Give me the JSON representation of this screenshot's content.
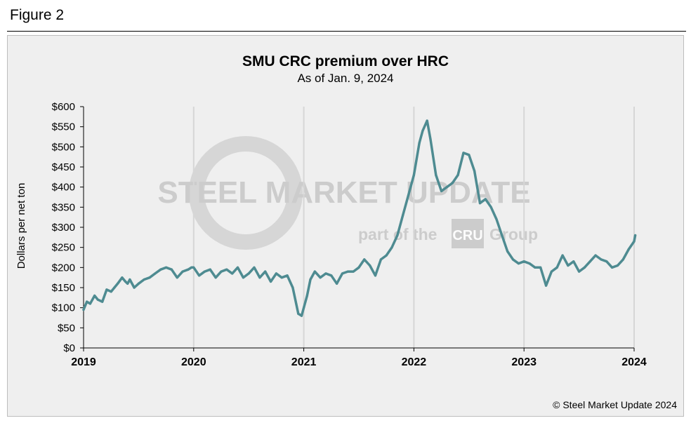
{
  "figure_label": "Figure 2",
  "copyright": "© Steel Market Update 2024",
  "watermark": {
    "brand": "STEEL MARKET UPDATE",
    "tagline_pre": "part of the",
    "tagline_logo": "CRU",
    "tagline_post": "Group"
  },
  "colors": {
    "line": "#4e8b91",
    "background": "#efefef",
    "grid": "#d6d6d6"
  },
  "chart_data": {
    "type": "line",
    "title": "SMU CRC premium over HRC",
    "subtitle": "As of Jan. 9, 2024",
    "xlabel": "",
    "ylabel": "Dollars per net ton",
    "xlim": [
      2019,
      2024
    ],
    "ylim": [
      0,
      600
    ],
    "x_ticks": [
      2019,
      2020,
      2021,
      2022,
      2023,
      2024
    ],
    "x_tick_labels": [
      "2019",
      "2020",
      "2021",
      "2022",
      "2023",
      "2024"
    ],
    "y_ticks": [
      0,
      50,
      100,
      150,
      200,
      250,
      300,
      350,
      400,
      450,
      500,
      550,
      600
    ],
    "y_tick_labels": [
      "$0",
      "$50",
      "$100",
      "$150",
      "$200",
      "$250",
      "$300",
      "$350",
      "$400",
      "$450",
      "$500",
      "$550",
      "$600"
    ],
    "grid": "vertical",
    "series": [
      {
        "name": "CRC premium over HRC",
        "x": [
          2019.0,
          2019.03,
          2019.06,
          2019.1,
          2019.13,
          2019.17,
          2019.21,
          2019.25,
          2019.28,
          2019.31,
          2019.35,
          2019.38,
          2019.4,
          2019.42,
          2019.46,
          2019.5,
          2019.55,
          2019.6,
          2019.65,
          2019.7,
          2019.75,
          2019.8,
          2019.85,
          2019.9,
          2019.95,
          2019.98,
          2020.0,
          2020.05,
          2020.1,
          2020.15,
          2020.2,
          2020.25,
          2020.3,
          2020.35,
          2020.4,
          2020.45,
          2020.5,
          2020.55,
          2020.6,
          2020.65,
          2020.7,
          2020.75,
          2020.8,
          2020.85,
          2020.9,
          2020.95,
          2020.98,
          2021.0,
          2021.03,
          2021.06,
          2021.1,
          2021.15,
          2021.2,
          2021.25,
          2021.3,
          2021.35,
          2021.4,
          2021.45,
          2021.5,
          2021.55,
          2021.6,
          2021.65,
          2021.7,
          2021.75,
          2021.8,
          2021.85,
          2021.9,
          2021.95,
          2022.0,
          2022.05,
          2022.08,
          2022.12,
          2022.15,
          2022.2,
          2022.25,
          2022.3,
          2022.35,
          2022.4,
          2022.45,
          2022.5,
          2022.55,
          2022.6,
          2022.65,
          2022.7,
          2022.75,
          2022.8,
          2022.85,
          2022.9,
          2022.95,
          2023.0,
          2023.05,
          2023.1,
          2023.15,
          2023.2,
          2023.25,
          2023.3,
          2023.35,
          2023.4,
          2023.45,
          2023.5,
          2023.55,
          2023.6,
          2023.65,
          2023.7,
          2023.75,
          2023.8,
          2023.85,
          2023.9,
          2023.95,
          2024.0,
          2024.01
        ],
        "values": [
          95,
          115,
          110,
          130,
          120,
          115,
          145,
          140,
          150,
          160,
          175,
          165,
          160,
          170,
          150,
          160,
          170,
          175,
          185,
          195,
          200,
          195,
          175,
          190,
          195,
          200,
          200,
          180,
          190,
          195,
          175,
          190,
          195,
          185,
          200,
          175,
          185,
          200,
          175,
          190,
          165,
          185,
          175,
          180,
          150,
          85,
          80,
          100,
          130,
          170,
          190,
          175,
          185,
          180,
          160,
          185,
          190,
          190,
          200,
          220,
          205,
          180,
          220,
          230,
          250,
          280,
          330,
          380,
          430,
          510,
          540,
          565,
          520,
          430,
          390,
          400,
          410,
          430,
          485,
          480,
          440,
          360,
          370,
          350,
          320,
          280,
          240,
          220,
          210,
          215,
          210,
          200,
          200,
          155,
          190,
          200,
          230,
          205,
          215,
          190,
          200,
          215,
          230,
          220,
          215,
          200,
          205,
          220,
          245,
          265,
          280
        ]
      }
    ]
  }
}
